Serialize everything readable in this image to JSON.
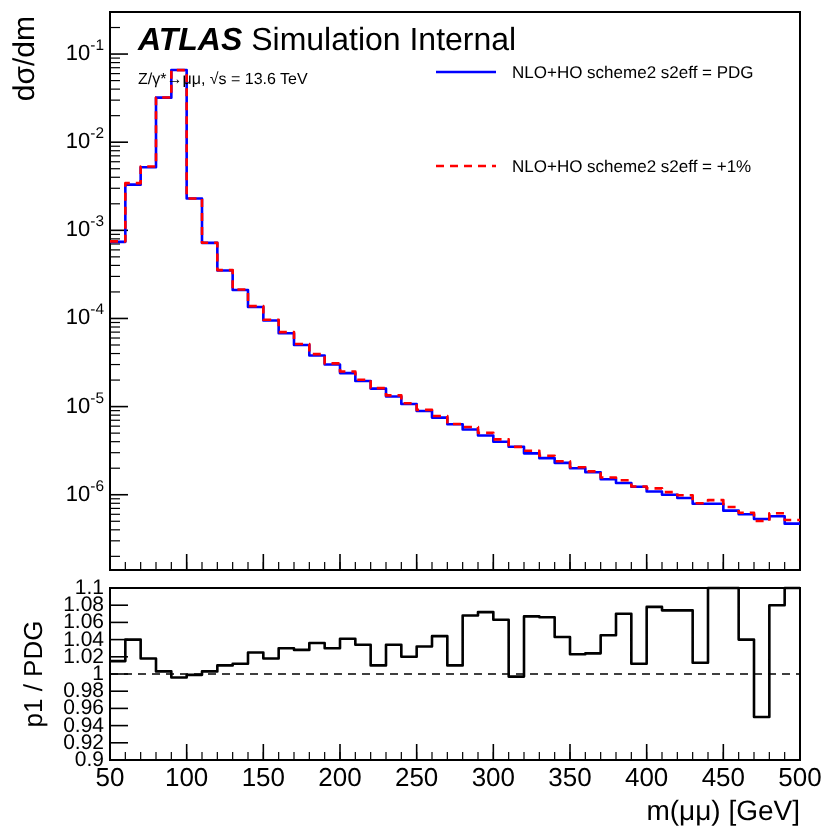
{
  "chart_data": [
    {
      "type": "histogram",
      "title": "ATLAS Simulation Internal",
      "ylabel": "dσ/dm",
      "annotations": [
        "Z/γ*→μμ,   √s = 13.6 TeV"
      ],
      "log": "y",
      "legend": "top right",
      "tick_labels": "y",
      "xlim": [
        50,
        500
      ],
      "xticks": [
        {
          "value": 50,
          "label": null
        },
        {
          "value": 100,
          "label": null
        },
        {
          "value": 150,
          "label": null
        },
        {
          "value": 200,
          "label": null
        },
        {
          "value": 250,
          "label": null
        },
        {
          "value": 300,
          "label": null
        },
        {
          "value": 350,
          "label": null
        },
        {
          "value": 400,
          "label": null
        },
        {
          "value": 450,
          "label": null
        },
        {
          "value": 500,
          "label": null
        }
      ],
      "ylim": [
        1.4e-07,
        0.3
      ],
      "yticks": [
        {
          "value": 1e-06,
          "label": "10$^{-6}$"
        },
        {
          "value": 1e-05,
          "label": "10$^{-5}$"
        },
        {
          "value": 0.0001,
          "label": "10$^{-4}$"
        },
        {
          "value": 0.001,
          "label": "10$^{-3}$"
        },
        {
          "value": 0.01,
          "label": "10$^{-2}$"
        },
        {
          "value": 0.1,
          "label": "10$^{-1}$"
        }
      ],
      "bins": [
        50,
        60,
        70,
        80,
        90,
        100,
        110,
        120,
        130,
        140,
        150,
        160,
        170,
        180,
        190,
        200,
        210,
        220,
        230,
        240,
        250,
        260,
        270,
        280,
        290,
        300,
        310,
        320,
        330,
        340,
        350,
        360,
        370,
        380,
        390,
        400,
        410,
        420,
        430,
        440,
        450,
        460,
        470,
        480,
        490,
        500
      ],
      "series": [
        {
          "name": "NLO+HO scheme2  s2eff = PDG",
          "color": "#0000ff",
          "line_style": "solid",
          "values": [
            0.00074,
            0.0033,
            0.0052,
            0.032,
            0.066,
            0.0023,
            0.00072,
            0.00035,
            0.00021,
            0.000135,
            9.5e-05,
            6.8e-05,
            5e-05,
            3.8e-05,
            3e-05,
            2.4e-05,
            1.95e-05,
            1.6e-05,
            1.3e-05,
            1.07e-05,
            8.9e-06,
            7.5e-06,
            6.3e-06,
            5.5e-06,
            4.7e-06,
            4e-06,
            3.5e-06,
            2.95e-06,
            2.6e-06,
            2.3e-06,
            2e-06,
            1.8e-06,
            1.5e-06,
            1.36e-06,
            1.23e-06,
            1.09e-06,
            1e-06,
            9.2e-07,
            7.9e-07,
            7.9e-07,
            6.6e-07,
            6e-07,
            5.3e-07,
            5.7e-07,
            4.7e-07
          ]
        },
        {
          "name": "NLO+HO scheme2  s2eff = +1%",
          "color": "#ff0000",
          "line_style": "dashed",
          "values": [
            0.00075,
            0.00343,
            0.00529,
            0.0321,
            0.0657,
            0.0023,
            0.000722,
            0.000354,
            0.000213,
            0.000138,
            9.67e-05,
            7e-05,
            5.14e-05,
            3.94e-05,
            3.09e-05,
            2.5e-05,
            2.02e-05,
            1.62e-05,
            1.34e-05,
            1.09e-05,
            9.18e-06,
            7.83e-06,
            6.36e-06,
            5.87e-06,
            5.04e-06,
            4.25e-06,
            3.49e-06,
            3.15e-06,
            2.77e-06,
            2.4e-06,
            2.05e-06,
            1.84e-06,
            1.57e-06,
            1.46e-06,
            1.24e-06,
            1.18e-06,
            1.07e-06,
            9.88e-07,
            8e-07,
            8.69e-07,
            7.26e-07,
            6.24e-07,
            5.04e-07,
            6.16e-07,
            5.17e-07
          ]
        }
      ]
    },
    {
      "type": "histogram",
      "xlabel": "m(μμ) [GeV]",
      "ylabel": "p1 / PDG",
      "xlim": [
        50,
        500
      ],
      "xticks": [
        50,
        100,
        150,
        200,
        250,
        300,
        350,
        400,
        450,
        500
      ],
      "ylim": [
        0.9,
        1.1
      ],
      "yticks": [
        0.9,
        0.92,
        0.94,
        0.96,
        0.98,
        1,
        1.02,
        1.04,
        1.06,
        1.08,
        1.1
      ],
      "bins": [
        50,
        60,
        70,
        80,
        90,
        100,
        110,
        120,
        130,
        140,
        150,
        160,
        170,
        180,
        190,
        200,
        210,
        220,
        230,
        240,
        250,
        260,
        270,
        280,
        290,
        300,
        310,
        320,
        330,
        340,
        350,
        360,
        370,
        380,
        390,
        400,
        410,
        420,
        430,
        440,
        450,
        460,
        470,
        480,
        490,
        500
      ],
      "series": [
        {
          "color": "#000000",
          "line_style": "solid",
          "values": [
            1.015,
            1.04,
            1.018,
            1.003,
            0.996,
            0.999,
            1.003,
            1.01,
            1.012,
            1.025,
            1.018,
            1.03,
            1.028,
            1.036,
            1.03,
            1.041,
            1.034,
            1.01,
            1.034,
            1.02,
            1.032,
            1.044,
            1.01,
            1.068,
            1.072,
            1.063,
            0.997,
            1.067,
            1.066,
            1.043,
            1.023,
            1.024,
            1.045,
            1.07,
            1.012,
            1.078,
            1.074,
            1.074,
            1.013,
            1.1,
            1.1,
            1.04,
            0.95,
            1.08,
            1.1
          ]
        }
      ],
      "ref_lines": [
        {
          "axis": "y",
          "value": 1,
          "color": "#000000",
          "line_style": "dashed"
        }
      ]
    }
  ]
}
